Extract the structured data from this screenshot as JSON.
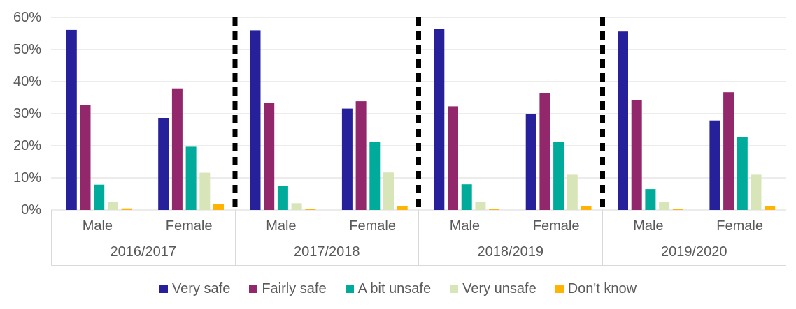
{
  "chart_data": {
    "type": "bar",
    "title": "",
    "xlabel": "",
    "ylabel": "",
    "grid": true,
    "legend_position": "bottom",
    "y_axis": {
      "min": 0,
      "max": 60,
      "step": 10,
      "tick_labels": [
        "0%",
        "10%",
        "20%",
        "30%",
        "40%",
        "50%",
        "60%"
      ]
    },
    "groups": [
      "2016/2017",
      "2017/2018",
      "2018/2019",
      "2019/2020"
    ],
    "subgroups": [
      "Male",
      "Female"
    ],
    "category_order_note": "values arrays are ordered Male,Female per group: 2016/2017 M, 2016/2017 F, 2017/2018 M, 2017/2018 F, 2018/2019 M, 2018/2019 F, 2019/2020 M, 2019/2020 F",
    "series": [
      {
        "name": "Very safe",
        "color": "#26219B",
        "values": [
          56.1,
          28.7,
          56.0,
          31.6,
          56.3,
          30.0,
          55.6,
          27.9
        ]
      },
      {
        "name": "Fairly safe",
        "color": "#93276B",
        "values": [
          32.8,
          37.9,
          33.3,
          33.9,
          32.3,
          36.4,
          34.3,
          36.7
        ]
      },
      {
        "name": "A bit unsafe",
        "color": "#00AB9B",
        "values": [
          7.9,
          19.7,
          7.6,
          21.3,
          8.0,
          21.3,
          6.5,
          22.6
        ]
      },
      {
        "name": "Very unsafe",
        "color": "#D8E5B8",
        "values": [
          2.5,
          11.6,
          2.1,
          11.7,
          2.6,
          11.0,
          2.5,
          11.0
        ]
      },
      {
        "name": "Don't know",
        "color": "#FFB405",
        "values": [
          0.5,
          1.9,
          0.4,
          1.2,
          0.4,
          1.3,
          0.4,
          1.1
        ]
      }
    ],
    "colors": {
      "gridline": "#D9D9D9",
      "axis_text": "#595959",
      "group_separator": "#000000",
      "background": "#FFFFFF"
    }
  }
}
